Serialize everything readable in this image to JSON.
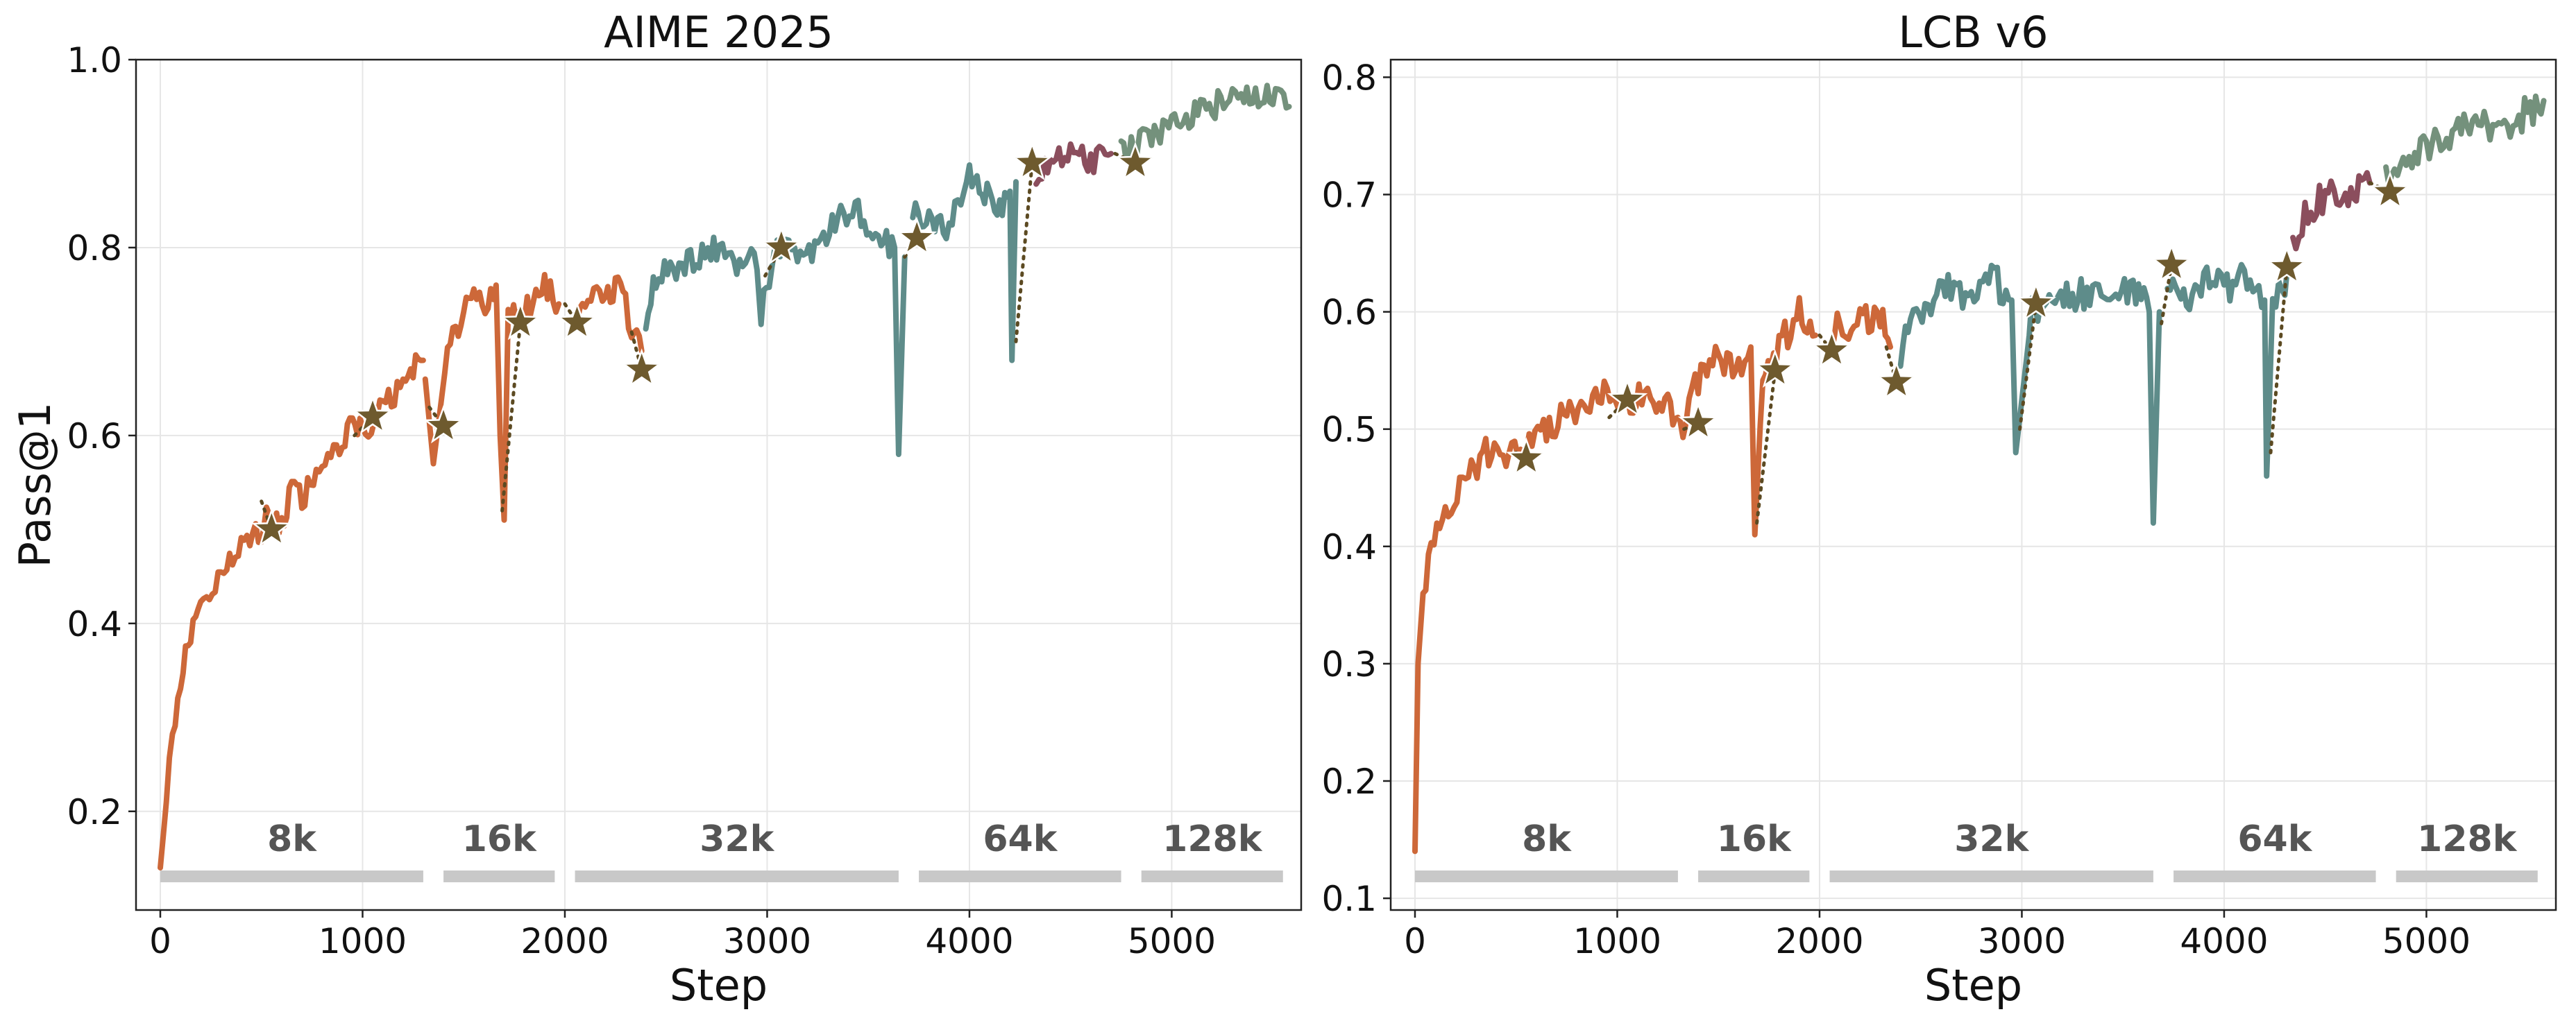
{
  "colors": {
    "ctx_8k": "#CD6839",
    "ctx_16k": "#CD6839",
    "ctx_32k": "#5E8C8A",
    "ctx_64k": "#5E8C8A",
    "ctx_64k_tail": "#8B4E5D",
    "ctx_128k": "#74917C",
    "star": "#6E5A2E",
    "dotted": "#5C4A22",
    "bar": "#C8C8C8",
    "grid": "#E6E6E6"
  },
  "chart_data": [
    {
      "type": "line",
      "title": "AIME 2025",
      "xlabel": "Step",
      "ylabel": "Pass@1",
      "xlim": [
        -120,
        5640
      ],
      "ylim": [
        0.095,
        1.0
      ],
      "xticks": [
        0,
        1000,
        2000,
        3000,
        4000,
        5000
      ],
      "xtick_labels": [
        "0",
        "1000",
        "2000",
        "3000",
        "4000",
        "5000"
      ],
      "yticks": [
        0.2,
        0.4,
        0.6,
        0.8,
        1.0
      ],
      "ytick_labels": [
        "0.2",
        "0.4",
        "0.6",
        "0.8",
        "1.0"
      ],
      "grid": true,
      "context_stages": [
        {
          "label": "8k",
          "start": 0,
          "end": 1300
        },
        {
          "label": "16k",
          "start": 1400,
          "end": 1950
        },
        {
          "label": "32k",
          "start": 2050,
          "end": 3650
        },
        {
          "label": "64k",
          "start": 3750,
          "end": 4750
        },
        {
          "label": "128k",
          "start": 4850,
          "end": 5550
        }
      ],
      "series": [
        {
          "stage": "8k",
          "color_key": "ctx_8k",
          "points": [
            [
              0,
              0.14
            ],
            [
              30,
              0.21
            ],
            [
              60,
              0.28
            ],
            [
              100,
              0.34
            ],
            [
              150,
              0.39
            ],
            [
              200,
              0.42
            ],
            [
              300,
              0.45
            ],
            [
              400,
              0.48
            ],
            [
              500,
              0.5
            ],
            [
              550,
              0.52
            ],
            [
              600,
              0.5
            ],
            [
              650,
              0.55
            ],
            [
              700,
              0.53
            ],
            [
              800,
              0.57
            ],
            [
              900,
              0.59
            ],
            [
              950,
              0.62
            ],
            [
              1000,
              0.6
            ],
            [
              1100,
              0.63
            ],
            [
              1200,
              0.65
            ],
            [
              1250,
              0.67
            ],
            [
              1300,
              0.68
            ]
          ]
        },
        {
          "stage": "16k",
          "color_key": "ctx_8k",
          "points": [
            [
              1310,
              0.66
            ],
            [
              1350,
              0.57
            ],
            [
              1420,
              0.69
            ],
            [
              1500,
              0.73
            ],
            [
              1550,
              0.75
            ],
            [
              1620,
              0.74
            ],
            [
              1660,
              0.76
            ],
            [
              1680,
              0.6
            ],
            [
              1700,
              0.51
            ],
            [
              1720,
              0.73
            ],
            [
              1800,
              0.73
            ],
            [
              1900,
              0.76
            ],
            [
              1970,
              0.74
            ]
          ]
        },
        {
          "stage": "16k-b",
          "color_key": "ctx_16k",
          "points": [
            [
              2050,
              0.73
            ],
            [
              2100,
              0.75
            ],
            [
              2200,
              0.74
            ],
            [
              2250,
              0.76
            ],
            [
              2300,
              0.74
            ],
            [
              2330,
              0.71
            ],
            [
              2380,
              0.69
            ]
          ]
        },
        {
          "stage": "32k",
          "color_key": "ctx_32k",
          "points": [
            [
              2400,
              0.72
            ],
            [
              2450,
              0.77
            ],
            [
              2550,
              0.78
            ],
            [
              2650,
              0.79
            ],
            [
              2750,
              0.8
            ],
            [
              2850,
              0.78
            ],
            [
              2950,
              0.79
            ],
            [
              2970,
              0.73
            ],
            [
              3050,
              0.8
            ],
            [
              3150,
              0.79
            ],
            [
              3250,
              0.8
            ],
            [
              3350,
              0.83
            ],
            [
              3450,
              0.84
            ],
            [
              3550,
              0.81
            ],
            [
              3630,
              0.8
            ],
            [
              3650,
              0.58
            ],
            [
              3680,
              0.79
            ]
          ]
        },
        {
          "stage": "64k",
          "color_key": "ctx_64k",
          "points": [
            [
              3720,
              0.84
            ],
            [
              3800,
              0.83
            ],
            [
              3900,
              0.82
            ],
            [
              4000,
              0.88
            ],
            [
              4050,
              0.86
            ],
            [
              4100,
              0.86
            ],
            [
              4150,
              0.84
            ],
            [
              4200,
              0.86
            ],
            [
              4210,
              0.68
            ],
            [
              4230,
              0.87
            ]
          ]
        },
        {
          "stage": "64k-tail",
          "color_key": "ctx_64k_tail",
          "points": [
            [
              4330,
              0.88
            ],
            [
              4400,
              0.89
            ],
            [
              4500,
              0.9
            ],
            [
              4600,
              0.89
            ],
            [
              4700,
              0.9
            ]
          ]
        },
        {
          "stage": "128k",
          "color_key": "ctx_128k",
          "points": [
            [
              4750,
              0.9
            ],
            [
              4800,
              0.91
            ],
            [
              4900,
              0.92
            ],
            [
              5000,
              0.93
            ],
            [
              5100,
              0.94
            ],
            [
              5200,
              0.95
            ],
            [
              5300,
              0.96
            ],
            [
              5400,
              0.96
            ],
            [
              5500,
              0.96
            ],
            [
              5580,
              0.95
            ]
          ]
        }
      ],
      "stars": [
        [
          550,
          0.5
        ],
        [
          1050,
          0.62
        ],
        [
          1400,
          0.61
        ],
        [
          1780,
          0.72
        ],
        [
          2060,
          0.72
        ],
        [
          2380,
          0.67
        ],
        [
          3070,
          0.8
        ],
        [
          3740,
          0.81
        ],
        [
          4310,
          0.89
        ],
        [
          4820,
          0.89
        ]
      ],
      "dotted_links": [
        [
          [
            500,
            0.53
          ],
          [
            550,
            0.5
          ]
        ],
        [
          [
            960,
            0.6
          ],
          [
            1050,
            0.62
          ]
        ],
        [
          [
            1330,
            0.63
          ],
          [
            1400,
            0.61
          ]
        ],
        [
          [
            1690,
            0.52
          ],
          [
            1780,
            0.72
          ]
        ],
        [
          [
            2000,
            0.74
          ],
          [
            2060,
            0.72
          ]
        ],
        [
          [
            2330,
            0.71
          ],
          [
            2380,
            0.67
          ]
        ],
        [
          [
            2990,
            0.77
          ],
          [
            3070,
            0.8
          ]
        ],
        [
          [
            3680,
            0.79
          ],
          [
            3740,
            0.81
          ]
        ],
        [
          [
            4230,
            0.7
          ],
          [
            4310,
            0.89
          ]
        ],
        [
          [
            4720,
            0.9
          ],
          [
            4820,
            0.89
          ]
        ]
      ]
    },
    {
      "type": "line",
      "title": "LCB v6",
      "xlabel": "Step",
      "ylabel": "",
      "xlim": [
        -120,
        5640
      ],
      "ylim": [
        0.09,
        0.815
      ],
      "xticks": [
        0,
        1000,
        2000,
        3000,
        4000,
        5000
      ],
      "xtick_labels": [
        "0",
        "1000",
        "2000",
        "3000",
        "4000",
        "5000"
      ],
      "yticks": [
        0.1,
        0.2,
        0.3,
        0.4,
        0.5,
        0.6,
        0.7,
        0.8
      ],
      "ytick_labels": [
        "0.1",
        "0.2",
        "0.3",
        "0.4",
        "0.5",
        "0.6",
        "0.7",
        "0.8"
      ],
      "grid": true,
      "context_stages": [
        {
          "label": "8k",
          "start": 0,
          "end": 1300
        },
        {
          "label": "16k",
          "start": 1400,
          "end": 1950
        },
        {
          "label": "32k",
          "start": 2050,
          "end": 3650
        },
        {
          "label": "64k",
          "start": 3750,
          "end": 4750
        },
        {
          "label": "128k",
          "start": 4850,
          "end": 5550
        }
      ],
      "series": [
        {
          "stage": "8k",
          "color_key": "ctx_8k",
          "points": [
            [
              0,
              0.14
            ],
            [
              15,
              0.3
            ],
            [
              40,
              0.36
            ],
            [
              80,
              0.4
            ],
            [
              150,
              0.43
            ],
            [
              250,
              0.46
            ],
            [
              350,
              0.48
            ],
            [
              450,
              0.47
            ],
            [
              550,
              0.49
            ],
            [
              650,
              0.5
            ],
            [
              750,
              0.51
            ],
            [
              850,
              0.52
            ],
            [
              950,
              0.53
            ],
            [
              1050,
              0.52
            ],
            [
              1150,
              0.53
            ],
            [
              1250,
              0.52
            ],
            [
              1300,
              0.51
            ]
          ]
        },
        {
          "stage": "16k",
          "color_key": "ctx_8k",
          "points": [
            [
              1310,
              0.5
            ],
            [
              1400,
              0.54
            ],
            [
              1500,
              0.56
            ],
            [
              1600,
              0.55
            ],
            [
              1660,
              0.57
            ],
            [
              1680,
              0.41
            ],
            [
              1720,
              0.55
            ],
            [
              1800,
              0.57
            ],
            [
              1900,
              0.6
            ],
            [
              1980,
              0.58
            ]
          ]
        },
        {
          "stage": "16k-b",
          "color_key": "ctx_16k",
          "points": [
            [
              2050,
              0.57
            ],
            [
              2100,
              0.59
            ],
            [
              2200,
              0.59
            ],
            [
              2300,
              0.6
            ],
            [
              2350,
              0.57
            ]
          ]
        },
        {
          "stage": "32k",
          "color_key": "ctx_32k",
          "points": [
            [
              2400,
              0.56
            ],
            [
              2450,
              0.59
            ],
            [
              2550,
              0.61
            ],
            [
              2650,
              0.62
            ],
            [
              2750,
              0.61
            ],
            [
              2850,
              0.63
            ],
            [
              2950,
              0.61
            ],
            [
              2970,
              0.48
            ],
            [
              3050,
              0.6
            ],
            [
              3150,
              0.62
            ],
            [
              3250,
              0.61
            ],
            [
              3350,
              0.62
            ],
            [
              3450,
              0.61
            ],
            [
              3550,
              0.62
            ],
            [
              3630,
              0.6
            ],
            [
              3650,
              0.42
            ],
            [
              3680,
              0.6
            ]
          ]
        },
        {
          "stage": "64k",
          "color_key": "ctx_64k",
          "points": [
            [
              3720,
              0.62
            ],
            [
              3800,
              0.61
            ],
            [
              3900,
              0.63
            ],
            [
              4000,
              0.62
            ],
            [
              4100,
              0.63
            ],
            [
              4200,
              0.61
            ],
            [
              4210,
              0.46
            ],
            [
              4240,
              0.6
            ],
            [
              4330,
              0.64
            ]
          ]
        },
        {
          "stage": "64k-tail",
          "color_key": "ctx_64k_tail",
          "points": [
            [
              4340,
              0.66
            ],
            [
              4400,
              0.68
            ],
            [
              4500,
              0.7
            ],
            [
              4600,
              0.7
            ],
            [
              4720,
              0.71
            ]
          ]
        },
        {
          "stage": "128k",
          "color_key": "ctx_128k",
          "points": [
            [
              4800,
              0.71
            ],
            [
              4900,
              0.73
            ],
            [
              5000,
              0.74
            ],
            [
              5100,
              0.75
            ],
            [
              5200,
              0.76
            ],
            [
              5300,
              0.76
            ],
            [
              5400,
              0.76
            ],
            [
              5500,
              0.77
            ],
            [
              5580,
              0.78
            ]
          ]
        }
      ],
      "stars": [
        [
          550,
          0.475
        ],
        [
          1050,
          0.525
        ],
        [
          1400,
          0.505
        ],
        [
          1780,
          0.55
        ],
        [
          2060,
          0.567
        ],
        [
          2380,
          0.54
        ],
        [
          3070,
          0.607
        ],
        [
          3740,
          0.64
        ],
        [
          4310,
          0.638
        ],
        [
          4820,
          0.702
        ]
      ],
      "dotted_links": [
        [
          [
            500,
            0.48
          ],
          [
            550,
            0.475
          ]
        ],
        [
          [
            960,
            0.51
          ],
          [
            1050,
            0.525
          ]
        ],
        [
          [
            1330,
            0.5
          ],
          [
            1400,
            0.505
          ]
        ],
        [
          [
            1690,
            0.42
          ],
          [
            1780,
            0.55
          ]
        ],
        [
          [
            2000,
            0.58
          ],
          [
            2060,
            0.567
          ]
        ],
        [
          [
            2330,
            0.57
          ],
          [
            2380,
            0.54
          ]
        ],
        [
          [
            2990,
            0.5
          ],
          [
            3070,
            0.607
          ]
        ],
        [
          [
            3690,
            0.59
          ],
          [
            3740,
            0.64
          ]
        ],
        [
          [
            4230,
            0.48
          ],
          [
            4310,
            0.638
          ]
        ],
        [
          [
            4720,
            0.71
          ],
          [
            4820,
            0.702
          ]
        ]
      ]
    }
  ]
}
